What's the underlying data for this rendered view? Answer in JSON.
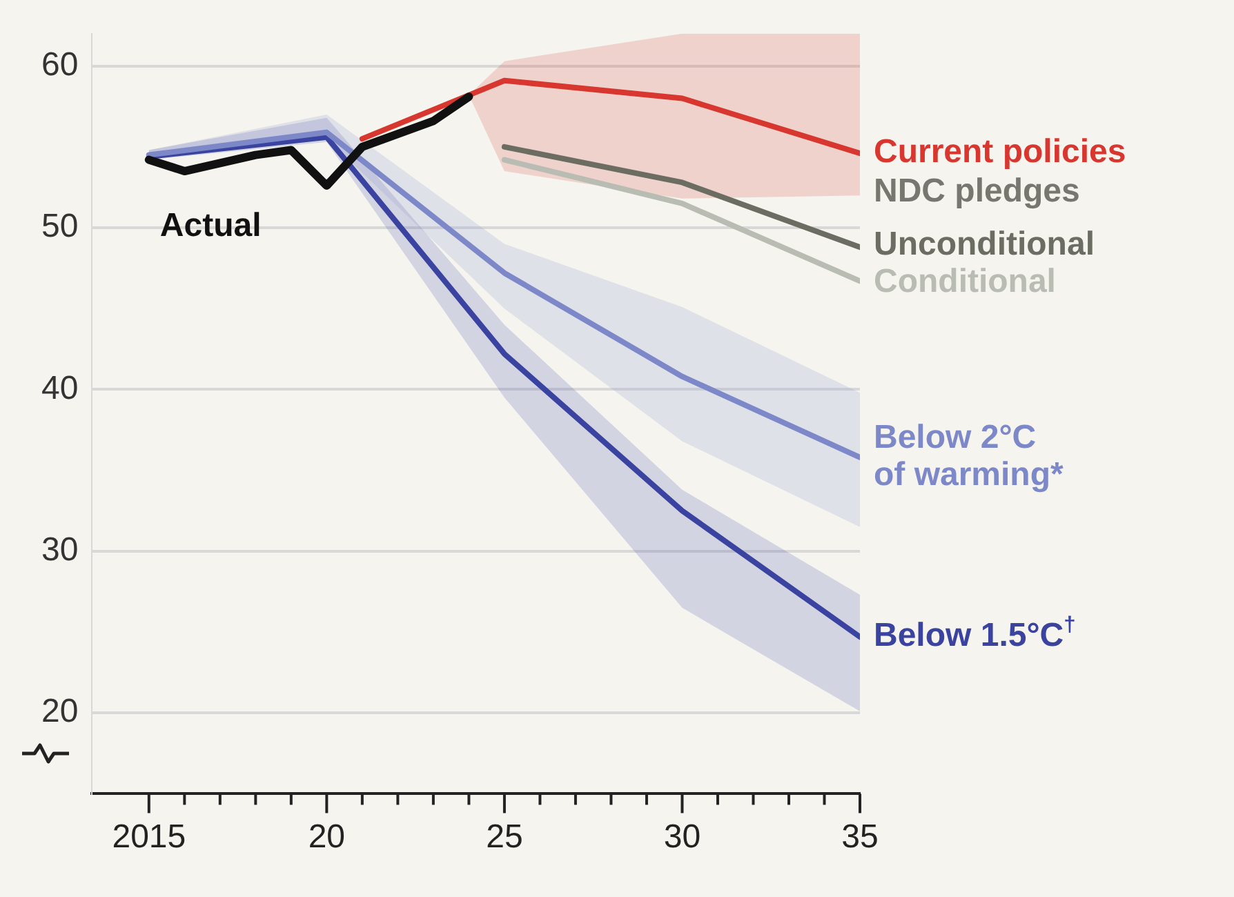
{
  "chart_data": {
    "type": "line",
    "xlim": [
      2013.4,
      2035
    ],
    "ylim": [
      15,
      62
    ],
    "xticks": [
      {
        "value": 2015,
        "label": "2015"
      },
      {
        "value": 2016,
        "label": null
      },
      {
        "value": 2017,
        "label": null
      },
      {
        "value": 2018,
        "label": null
      },
      {
        "value": 2019,
        "label": null
      },
      {
        "value": 2020,
        "label": "20"
      },
      {
        "value": 2021,
        "label": null
      },
      {
        "value": 2022,
        "label": null
      },
      {
        "value": 2023,
        "label": null
      },
      {
        "value": 2024,
        "label": null
      },
      {
        "value": 2025,
        "label": "25"
      },
      {
        "value": 2026,
        "label": null
      },
      {
        "value": 2027,
        "label": null
      },
      {
        "value": 2028,
        "label": null
      },
      {
        "value": 2029,
        "label": null
      },
      {
        "value": 2030,
        "label": "30"
      },
      {
        "value": 2031,
        "label": null
      },
      {
        "value": 2032,
        "label": null
      },
      {
        "value": 2033,
        "label": null
      },
      {
        "value": 2034,
        "label": null
      },
      {
        "value": 2035,
        "label": "35"
      }
    ],
    "yticks": [
      20,
      30,
      40,
      50,
      60
    ],
    "grid": "y",
    "legend": false,
    "marker": "none",
    "line_style": "solid",
    "annotations": [
      {
        "text": "NDC pledges",
        "x": 2035,
        "y": 52.2
      }
    ],
    "series": [
      {
        "name": "Actual",
        "color": "#111111",
        "x": [
          2015,
          2016,
          2017,
          2018,
          2019,
          2020,
          2021,
          2022,
          2023,
          2024
        ],
        "values": [
          54.2,
          53.5,
          54.0,
          54.5,
          54.8,
          52.6,
          55.0,
          55.8,
          56.6,
          58.1
        ]
      },
      {
        "name": "Current policies",
        "color": "#d7372f",
        "x": [
          2021,
          2024,
          2025,
          2030,
          2035
        ],
        "values": [
          55.5,
          58.2,
          59.1,
          58.0,
          54.6
        ],
        "lower": [
          55.5,
          58.2,
          53.5,
          51.8,
          52.0
        ],
        "upper": [
          55.5,
          58.2,
          60.3,
          62.0,
          62.0
        ]
      },
      {
        "name": "Unconditional",
        "color": "#6b6d62",
        "x": [
          2025,
          2030,
          2035
        ],
        "values": [
          55.0,
          52.8,
          48.8
        ]
      },
      {
        "name": "Conditional",
        "color": "#b9bcb3",
        "x": [
          2025,
          2030,
          2035
        ],
        "values": [
          54.2,
          51.5,
          46.7
        ]
      },
      {
        "name": "Below 2°C of warming*",
        "color": "#7d88c8",
        "x": [
          2015,
          2020,
          2025,
          2030,
          2035
        ],
        "values": [
          54.5,
          55.9,
          47.2,
          40.8,
          35.8
        ],
        "lower": [
          54.2,
          55.5,
          45.0,
          36.8,
          31.5
        ],
        "upper": [
          54.8,
          57.0,
          49.0,
          45.1,
          39.8
        ]
      },
      {
        "name": "Below 1.5°C$^{†}$",
        "color": "#3a43a0",
        "x": [
          2015,
          2020,
          2025,
          2030,
          2035
        ],
        "values": [
          54.4,
          55.6,
          42.2,
          32.5,
          24.7
        ],
        "lower": [
          54.2,
          55.3,
          39.5,
          26.5,
          20.1
        ],
        "upper": [
          54.8,
          56.8,
          44.0,
          33.8,
          27.3
        ]
      }
    ]
  }
}
